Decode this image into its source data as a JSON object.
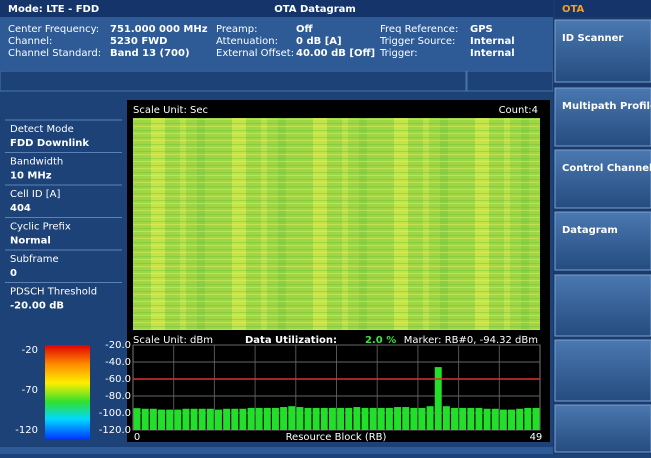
{
  "header": {
    "mode": "Mode: LTE - FDD",
    "title": "OTA Datagram"
  },
  "info": {
    "rows": [
      [
        "Center Frequency:",
        "751.000 000 MHz",
        "Preamp:",
        "Off",
        "Freq Reference:",
        "GPS"
      ],
      [
        "Channel:",
        "5230 FWD",
        "Attenuation:",
        "0 dB  [A]",
        "Trigger Source:",
        "Internal"
      ],
      [
        "Channel Standard:",
        "Band 13 (700)",
        "External Offset:",
        "40.00 dB  [Off]",
        "Trigger:",
        "Internal"
      ]
    ]
  },
  "params": [
    {
      "label": "Detect Mode",
      "value": "FDD Downlink"
    },
    {
      "label": "Bandwidth",
      "value": "10 MHz"
    },
    {
      "label": "Cell ID [A]",
      "value": "404"
    },
    {
      "label": "Cyclic Prefix",
      "value": "Normal"
    },
    {
      "label": "Subframe",
      "value": "0"
    },
    {
      "label": "PDSCH Threshold",
      "value": "-20.00 dB"
    }
  ],
  "spectrogram": {
    "scale_unit": "Scale Unit: Sec",
    "count": "Count:4"
  },
  "colorbar": {
    "labels": [
      "-20",
      "-70",
      "-120"
    ]
  },
  "chart_data": {
    "type": "bar",
    "scale_unit": "Scale Unit: dBm",
    "utilization_label": "Data Utilization:",
    "utilization": "2.0 %",
    "marker": "Marker: RB#0, -94.32 dBm",
    "x_label": "Resource Block (RB)",
    "xlim": [
      0,
      49
    ],
    "xticks": [
      0,
      49
    ],
    "ylim": [
      -120,
      -20
    ],
    "yticks": [
      {
        "value": -20,
        "label": "-20.0"
      },
      {
        "value": -40,
        "label": "-40.0"
      },
      {
        "value": -60,
        "label": "-60.0"
      },
      {
        "value": -80,
        "label": "-80.0"
      },
      {
        "value": -100,
        "label": "-100.0"
      },
      {
        "value": -120,
        "label": "-120.0"
      }
    ],
    "threshold": -60,
    "color": "#22e02a",
    "values": [
      -94.32,
      -95,
      -95,
      -96,
      -96,
      -96,
      -95,
      -95,
      -95,
      -95,
      -96,
      -95,
      -95,
      -95,
      -94,
      -94,
      -94,
      -94,
      -93,
      -92,
      -93,
      -94,
      -94,
      -94,
      -94,
      -94,
      -94,
      -93,
      -94,
      -94,
      -94,
      -94,
      -93,
      -93,
      -94,
      -94,
      -92,
      -46,
      -92,
      -94,
      -94,
      -94,
      -94,
      -95,
      -95,
      -96,
      -96,
      -95,
      -94,
      -94
    ]
  },
  "menu": {
    "title": "OTA",
    "buttons": [
      "ID Scanner",
      "Multipath Profile",
      "Control Channel",
      "Datagram",
      "",
      "",
      ""
    ]
  }
}
